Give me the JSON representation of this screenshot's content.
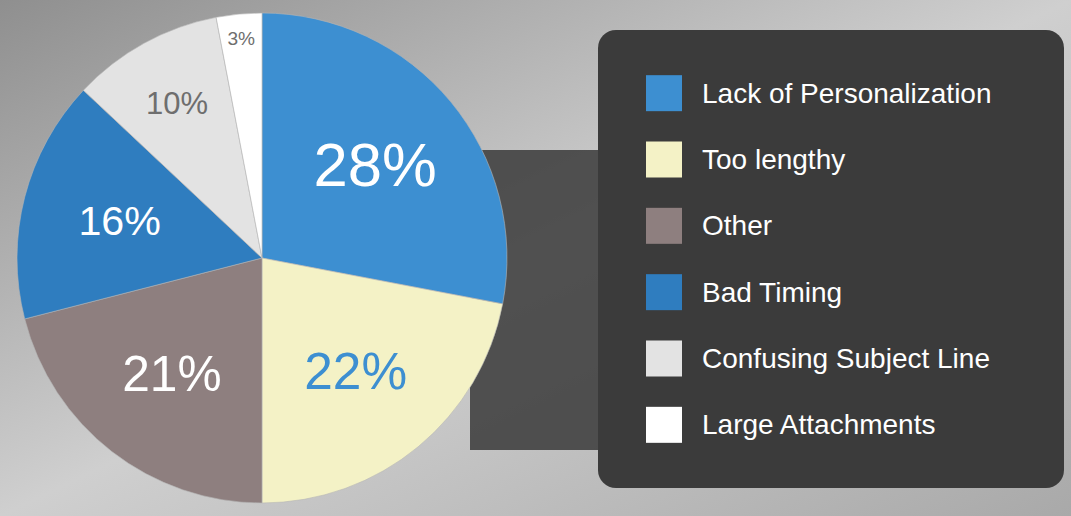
{
  "chart_data": {
    "type": "pie",
    "categories": [
      "Lack of Personalization",
      "Too lengthy",
      "Other",
      "Bad Timing",
      "Confusing Subject Line",
      "Large Attachments"
    ],
    "values": [
      28,
      22,
      21,
      16,
      10,
      3
    ],
    "value_labels": [
      "28%",
      "22%",
      "21%",
      "16%",
      "10%",
      "3%"
    ],
    "colors": [
      "#3d8fd1",
      "#f4f2c6",
      "#8e7f7f",
      "#2f7dbf",
      "#e3e3e3",
      "#ffffff"
    ],
    "data_labels": true,
    "legend": "right"
  }
}
